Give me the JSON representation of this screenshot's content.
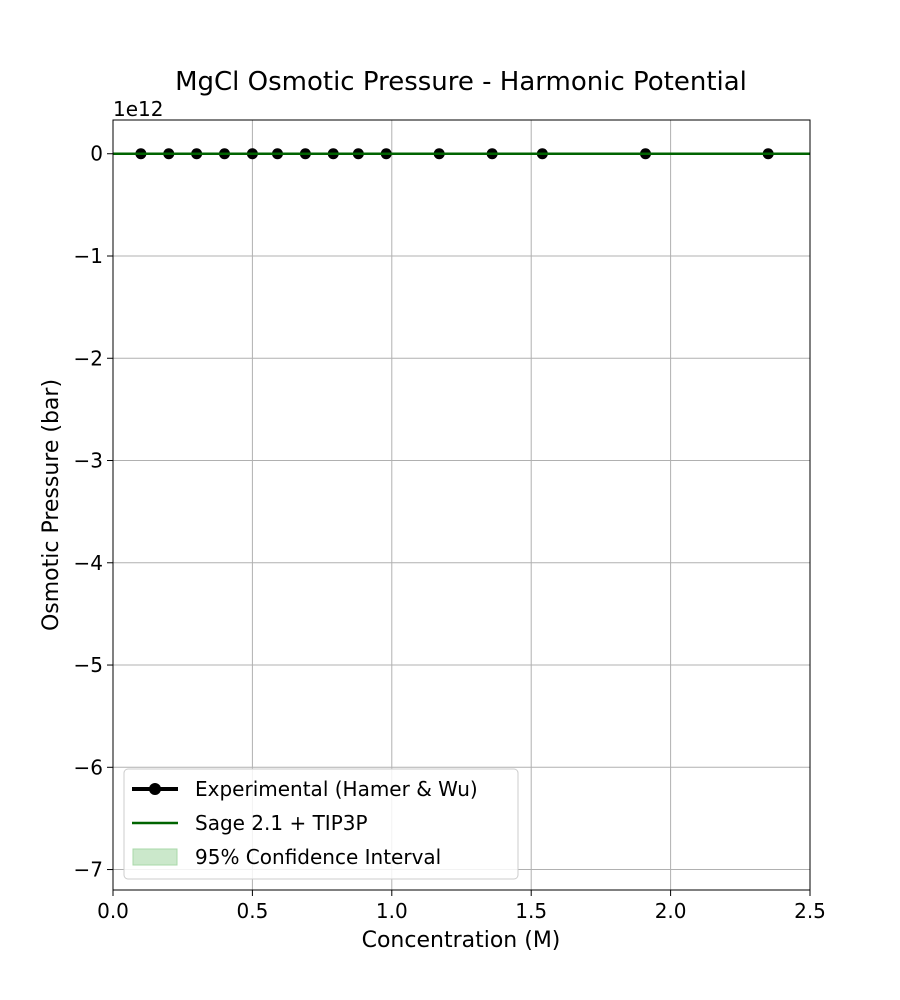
{
  "chart_data": {
    "type": "line",
    "title": "MgCl Osmotic Pressure - Harmonic Potential",
    "xlabel": "Concentration (M)",
    "ylabel": "Osmotic Pressure (bar)",
    "y_offset_label": "1e12",
    "xlim": [
      0.0,
      2.5
    ],
    "ylim": [
      -7200000000000.0,
      330000000000.0
    ],
    "x_ticks": [
      0.0,
      0.5,
      1.0,
      1.5,
      2.0,
      2.5
    ],
    "x_tick_labels": [
      "0.0",
      "0.5",
      "1.0",
      "1.5",
      "2.0",
      "2.5"
    ],
    "y_ticks": [
      0,
      -1000000000000.0,
      -2000000000000.0,
      -3000000000000.0,
      -4000000000000.0,
      -5000000000000.0,
      -6000000000000.0,
      -7000000000000.0
    ],
    "y_tick_labels": [
      "0",
      "−1",
      "−2",
      "−3",
      "−4",
      "−5",
      "−6",
      "−7"
    ],
    "grid": true,
    "legend_position": "lower-left",
    "series": [
      {
        "name": "Experimental (Hamer & Wu)",
        "kind": "line-markers",
        "color": "#000000",
        "x": [
          0.1,
          0.2,
          0.3,
          0.4,
          0.5,
          0.59,
          0.69,
          0.79,
          0.88,
          0.98,
          1.17,
          1.36,
          1.54,
          1.91,
          2.35
        ],
        "y": [
          0,
          0,
          0,
          0,
          0,
          0,
          0,
          0,
          0,
          0,
          0,
          0,
          0,
          0,
          0
        ]
      },
      {
        "name": "Sage 2.1 + TIP3P",
        "kind": "line",
        "color": "#006400",
        "x": [
          0.0,
          2.5
        ],
        "y": [
          0,
          0
        ]
      },
      {
        "name": "95% Confidence Interval",
        "kind": "band",
        "color": "#a8d8a8",
        "x": [
          0.0,
          2.5
        ],
        "y_low": [
          0,
          0
        ],
        "y_high": [
          0,
          0
        ]
      }
    ]
  }
}
